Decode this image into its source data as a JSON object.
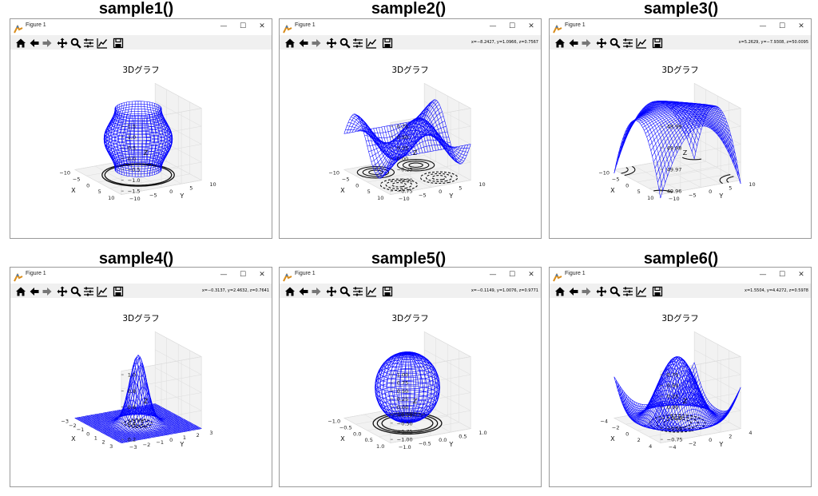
{
  "panels": [
    {
      "label": "sample1()",
      "window_title": "Figure 1",
      "coords": "",
      "figure_title": "3Dグラフ",
      "surface": "cylinder",
      "chart_data": {
        "type": "surface3d",
        "title": "3Dグラフ",
        "xlabel": "X",
        "ylabel": "Y",
        "zlabel": "Z",
        "x_ticks": [
          "−10",
          "−5",
          "0",
          "5",
          "10"
        ],
        "y_ticks": [
          "10",
          "5",
          "0",
          "−5",
          "−10"
        ],
        "z_ticks": [
          "1.5",
          "1.0",
          "0.5",
          "0.0",
          "−0.5",
          "−1.0",
          "−1.5"
        ],
        "color": "#0000ff"
      }
    },
    {
      "label": "sample2()",
      "window_title": "Figure 1",
      "coords": "x=−8.2427, y=1.0966, z=0.7567",
      "figure_title": "3Dグラフ",
      "surface": "wave",
      "chart_data": {
        "type": "surface3d",
        "title": "3Dグラフ",
        "xlabel": "X",
        "ylabel": "Y",
        "zlabel": "Z",
        "x_ticks": [
          "−10",
          "−5",
          "0",
          "5",
          "10"
        ],
        "y_ticks": [
          "10",
          "5",
          "0",
          "−5",
          "−10"
        ],
        "z_ticks": [
          "0.75",
          "0.50",
          "0.25",
          "0.00",
          "−0.25",
          "−0.50",
          "−0.75"
        ],
        "color": "#0000ff"
      }
    },
    {
      "label": "sample3()",
      "window_title": "Figure 1",
      "coords": "x=5.2629, y=−7.9308, z=50.0095",
      "figure_title": "3Dグラフ",
      "surface": "saddle",
      "chart_data": {
        "type": "surface3d",
        "title": "3Dグラフ",
        "xlabel": "X",
        "ylabel": "Y",
        "zlabel": "Z",
        "x_ticks": [
          "−10",
          "−5",
          "0",
          "5",
          "10"
        ],
        "y_ticks": [
          "10",
          "5",
          "0",
          "−5",
          "−10"
        ],
        "z_ticks": [
          "49.99",
          "49.98",
          "49.97",
          "49.96"
        ],
        "color": "#0000ff"
      }
    },
    {
      "label": "sample4()",
      "window_title": "Figure 1",
      "coords": "x=−0.3137, y=2.4632, z=0.7641",
      "figure_title": "3Dグラフ",
      "surface": "peak",
      "chart_data": {
        "type": "surface3d",
        "title": "3Dグラフ",
        "xlabel": "X",
        "ylabel": "Y",
        "zlabel": "Z",
        "x_ticks": [
          "−3",
          "−2",
          "−1",
          "0",
          "1",
          "2",
          "3"
        ],
        "y_ticks": [
          "3",
          "2",
          "1",
          "0",
          "−1",
          "−2",
          "−3"
        ],
        "z_ticks": [
          "1.0",
          "0.8",
          "0.6",
          "0.4",
          "0.2"
        ],
        "color": "#0000ff"
      }
    },
    {
      "label": "sample5()",
      "window_title": "Figure 1",
      "coords": "x=−0.1149, y=1.0076, z=0.9771",
      "figure_title": "3Dグラフ",
      "surface": "sphere",
      "chart_data": {
        "type": "surface3d",
        "title": "3Dグラフ",
        "xlabel": "X",
        "ylabel": "Y",
        "zlabel": "Z",
        "x_ticks": [
          "−1.0",
          "−0.5",
          "0.0",
          "0.5",
          "1.0"
        ],
        "y_ticks": [
          "1.0",
          "0.5",
          "0.0",
          "−0.5",
          "−1.0"
        ],
        "z_ticks": [
          "1.00",
          "0.75",
          "0.50",
          "0.25",
          "0.00",
          "−0.25",
          "−0.50",
          "−0.75",
          "−1.00"
        ],
        "color": "#0000ff"
      }
    },
    {
      "label": "sample6()",
      "window_title": "Figure 1",
      "coords": "x=1.5504, y=4.4272, z=0.5978",
      "figure_title": "3Dグラフ",
      "surface": "bowl",
      "chart_data": {
        "type": "surface3d",
        "title": "3Dグラフ",
        "xlabel": "X",
        "ylabel": "Y",
        "zlabel": "Z",
        "x_ticks": [
          "−4",
          "−2",
          "0",
          "2",
          "4"
        ],
        "y_ticks": [
          "4",
          "2",
          "0",
          "−2",
          "−4"
        ],
        "z_ticks": [
          "0.75",
          "0.50",
          "0.25",
          "0.00",
          "−0.25",
          "−0.50",
          "−0.75"
        ],
        "color": "#0000ff"
      }
    }
  ],
  "window_buttons": {
    "minimize": "—",
    "maximize": "☐",
    "close": "✕"
  },
  "toolbar_icons": [
    "home-icon",
    "back-icon",
    "forward-icon",
    "pan-icon",
    "zoom-icon",
    "configure-icon",
    "edit-axis-icon",
    "save-icon"
  ]
}
